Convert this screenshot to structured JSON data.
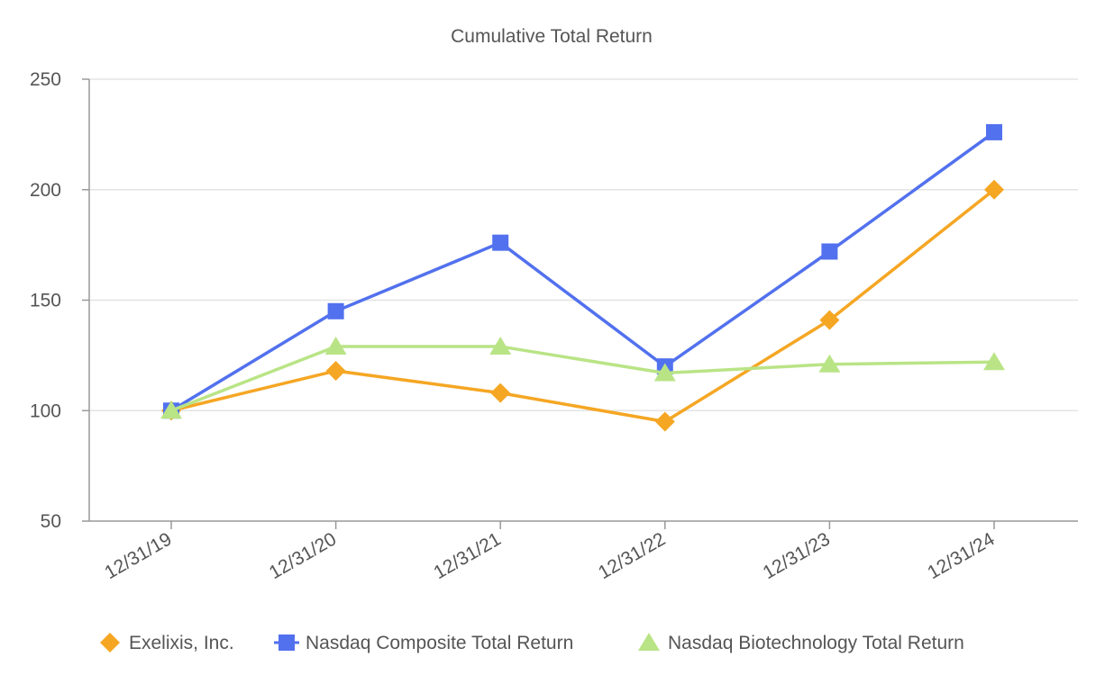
{
  "chart_data": {
    "type": "line",
    "title": "Cumulative Total  Return",
    "xlabel": "",
    "ylabel": "",
    "categories": [
      "12/31/19",
      "12/31/20",
      "12/31/21",
      "12/31/22",
      "12/31/23",
      "12/31/24"
    ],
    "ylim": [
      50,
      250
    ],
    "yticks": [
      50,
      100,
      150,
      200,
      250
    ],
    "grid": true,
    "legend_position": "bottom",
    "series": [
      {
        "name": "Exelixis, Inc.",
        "marker": "diamond",
        "color": "#F5A623",
        "values": [
          100,
          118,
          108,
          95,
          141,
          200
        ]
      },
      {
        "name": "Nasdaq Composite Total Return",
        "marker": "square",
        "color": "#5271EE",
        "values": [
          100,
          145,
          176,
          120,
          172,
          226
        ]
      },
      {
        "name": "Nasdaq Biotechnology Total Return",
        "marker": "triangle",
        "color": "#B9E486",
        "values": [
          100,
          129,
          129,
          117,
          121,
          122
        ]
      }
    ]
  }
}
